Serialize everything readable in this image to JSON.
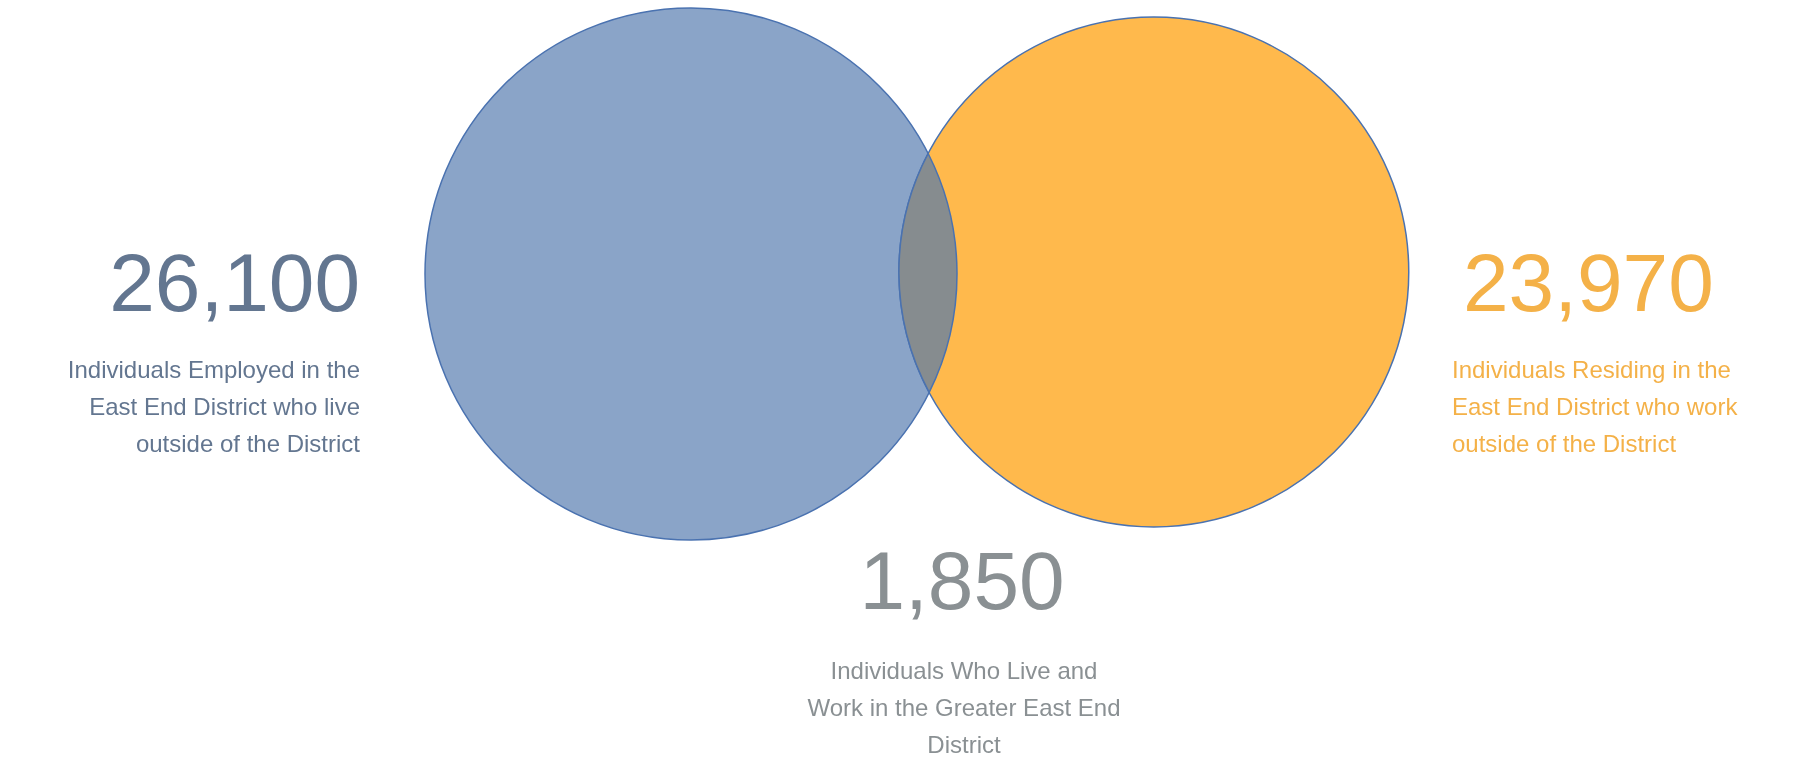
{
  "chart_data": {
    "type": "other",
    "categories": [
      "Individuals Employed in the East End District who live outside of the District",
      "Individuals Residing in the East End District who work outside of the District",
      "Individuals Who Live and Work in the Greater East End District"
    ],
    "values": [
      26100,
      23970,
      1850
    ],
    "value_labels": [
      "26,100",
      "23,970",
      "1,850"
    ],
    "colors": [
      "#8aa4c8",
      "#ffb94c",
      "#868c8f"
    ]
  }
}
